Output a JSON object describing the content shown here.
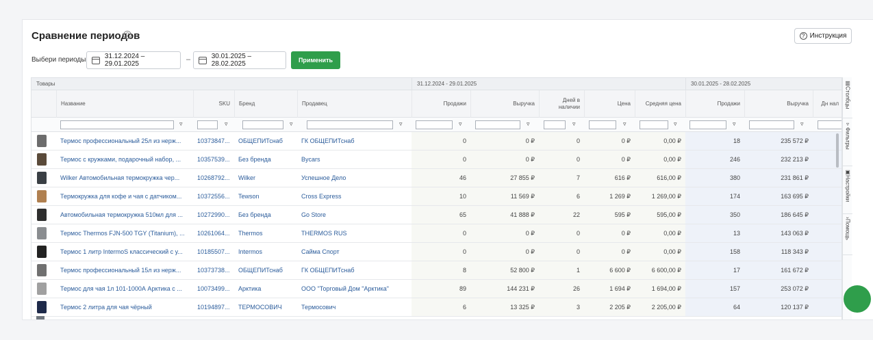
{
  "header": {
    "title": "Сравнение периодов",
    "title_help": "?",
    "instruction_button": "Инструкция"
  },
  "periods": {
    "label": "Выбери периоды",
    "period1": "31.12.2024 – 29.01.2025",
    "separator": "–",
    "period2": "30.01.2025 – 28.02.2025",
    "apply_button": "Применить"
  },
  "grid": {
    "group_headers": {
      "products": "Товары",
      "period1": "31.12.2024 - 29.01.2025",
      "period2": "30.01.2025 - 28.02.2025"
    },
    "columns": {
      "name": "Название",
      "sku": "SKU",
      "brand": "Бренд",
      "seller": "Продавец",
      "sales": "Продажи",
      "revenue": "Выручка",
      "days": "Дней в наличии",
      "price": "Цена",
      "avg_price": "Средняя цена",
      "sales2": "Продажи",
      "revenue2": "Выручка",
      "days2": "Дн нал"
    },
    "filter_icon": "filter-icon",
    "rows": [
      {
        "name": "Термос профессиональный 25л из нерж...",
        "sku": "10373847...",
        "brand": "ОБЩЕПИТснаб",
        "seller": "ГК ОБЩЕПИТснаб",
        "sales": "0",
        "revenue": "0 ₽",
        "days": "0",
        "price": "0 ₽",
        "avg_price": "0,00 ₽",
        "sales2": "18",
        "revenue2": "235 572 ₽",
        "thumb_color": "#6c6c6c"
      },
      {
        "name": "Термос с кружками, подарочный набор, ...",
        "sku": "10357539...",
        "brand": "Без бренда",
        "seller": "Bycars",
        "sales": "0",
        "revenue": "0 ₽",
        "days": "0",
        "price": "0 ₽",
        "avg_price": "0,00 ₽",
        "sales2": "246",
        "revenue2": "232 213 ₽",
        "thumb_color": "#5a4a3a"
      },
      {
        "name": "Wilker Автомобильная термокружка чер...",
        "sku": "10268792...",
        "brand": "Wilker",
        "seller": "Успешное Дело",
        "sales": "46",
        "revenue": "27 855 ₽",
        "days": "7",
        "price": "616 ₽",
        "avg_price": "616,00 ₽",
        "sales2": "380",
        "revenue2": "231 861 ₽",
        "thumb_color": "#3a3f44"
      },
      {
        "name": "Термокружка для кофе и чая с датчиком...",
        "sku": "10372556...",
        "brand": "Tewson",
        "seller": "Cross Express",
        "sales": "10",
        "revenue": "11 569 ₽",
        "days": "6",
        "price": "1 269 ₽",
        "avg_price": "1 269,00 ₽",
        "sales2": "174",
        "revenue2": "163 695 ₽",
        "thumb_color": "#b08050"
      },
      {
        "name": "Автомобильная термокружка 510мл для ...",
        "sku": "10272990...",
        "brand": "Без бренда",
        "seller": "Go Store",
        "sales": "65",
        "revenue": "41 888 ₽",
        "days": "22",
        "price": "595 ₽",
        "avg_price": "595,00 ₽",
        "sales2": "350",
        "revenue2": "186 645 ₽",
        "thumb_color": "#2e2e2e"
      },
      {
        "name": "Термос Thermos FJN-500 TGY (Titanium), ...",
        "sku": "10261064...",
        "brand": "Thermos",
        "seller": "THERMOS RUS",
        "sales": "0",
        "revenue": "0 ₽",
        "days": "0",
        "price": "0 ₽",
        "avg_price": "0,00 ₽",
        "sales2": "13",
        "revenue2": "143 063 ₽",
        "thumb_color": "#8a8d90"
      },
      {
        "name": "Термос 1 литр IntermoS классический с у...",
        "sku": "10185507...",
        "brand": "Intermos",
        "seller": "Сайма Спорт",
        "sales": "0",
        "revenue": "0 ₽",
        "days": "0",
        "price": "0 ₽",
        "avg_price": "0,00 ₽",
        "sales2": "158",
        "revenue2": "118 343 ₽",
        "thumb_color": "#222222"
      },
      {
        "name": "Термос профессиональный 15л из нерж...",
        "sku": "10373738...",
        "brand": "ОБЩЕПИТснаб",
        "seller": "ГК ОБЩЕПИТснаб",
        "sales": "8",
        "revenue": "52 800 ₽",
        "days": "1",
        "price": "6 600 ₽",
        "avg_price": "6 600,00 ₽",
        "sales2": "17",
        "revenue2": "161 672 ₽",
        "thumb_color": "#707070"
      },
      {
        "name": "Термос для чая 1л 101-1000А Арктика с ...",
        "sku": "10073499...",
        "brand": "Арктика",
        "seller": "ООО \"Торговый Дом \"Арктика\"",
        "sales": "89",
        "revenue": "144 231 ₽",
        "days": "26",
        "price": "1 694 ₽",
        "avg_price": "1 694,00 ₽",
        "sales2": "157",
        "revenue2": "253 072 ₽",
        "thumb_color": "#a0a0a0"
      },
      {
        "name": "Термос 2 литра для чая чёрный",
        "sku": "10194897...",
        "brand": "ТЕРМОСОВИЧ",
        "seller": "Термосович",
        "sales": "6",
        "revenue": "13 325 ₽",
        "days": "3",
        "price": "2 205 ₽",
        "avg_price": "2 205,00 ₽",
        "sales2": "64",
        "revenue2": "120 137 ₽",
        "thumb_color": "#1e2a4a"
      }
    ]
  },
  "sidebar": {
    "columns": "Столбцы",
    "filters": "Фильтры",
    "settings": "Настройки",
    "help": "Помощь"
  }
}
